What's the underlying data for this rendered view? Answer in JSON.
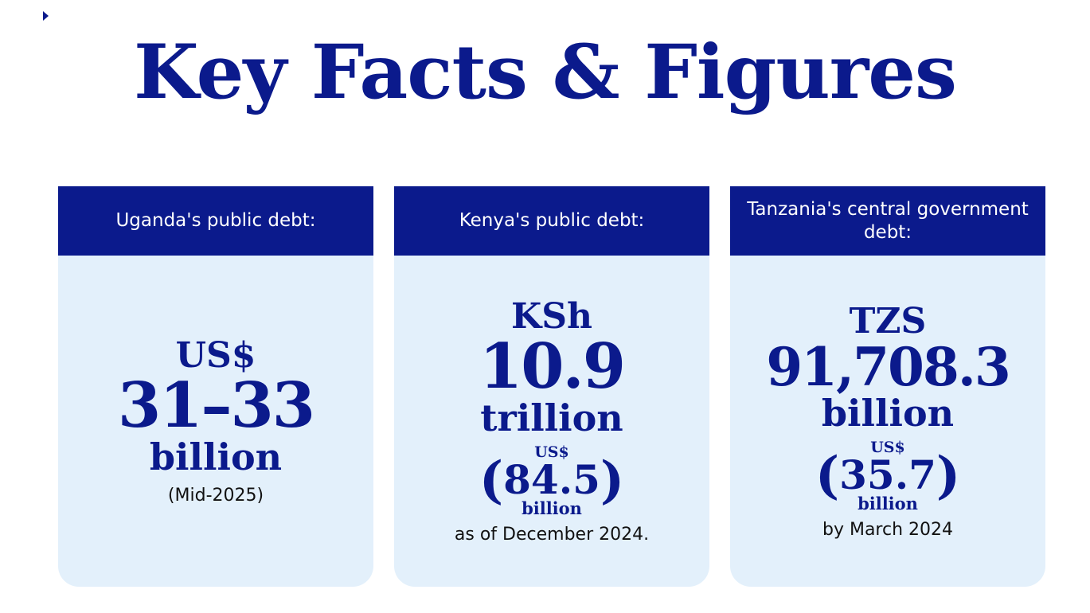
{
  "title": "Key Facts & Figures",
  "cards": [
    {
      "header": "Uganda's public debt:",
      "currency": "US$",
      "amount": "31–33",
      "unit": "billion",
      "note": "(Mid-2025)"
    },
    {
      "header": "Kenya's public debt:",
      "currency": "KSh",
      "amount": "10.9",
      "unit": "trillion",
      "usd_currency": "US$",
      "usd_amount": "84.5",
      "usd_unit": "billion",
      "note": "as of December 2024."
    },
    {
      "header": "Tanzania's central government debt:",
      "currency": "TZS",
      "amount": "91,708.3",
      "unit": "billion",
      "usd_currency": "US$",
      "usd_amount": "35.7",
      "usd_unit": "billion",
      "note": "by March 2024"
    }
  ],
  "colors": {
    "primary": "#0b1a8c",
    "card_bg": "#e3f0fb",
    "header_text": "#ffffff"
  }
}
